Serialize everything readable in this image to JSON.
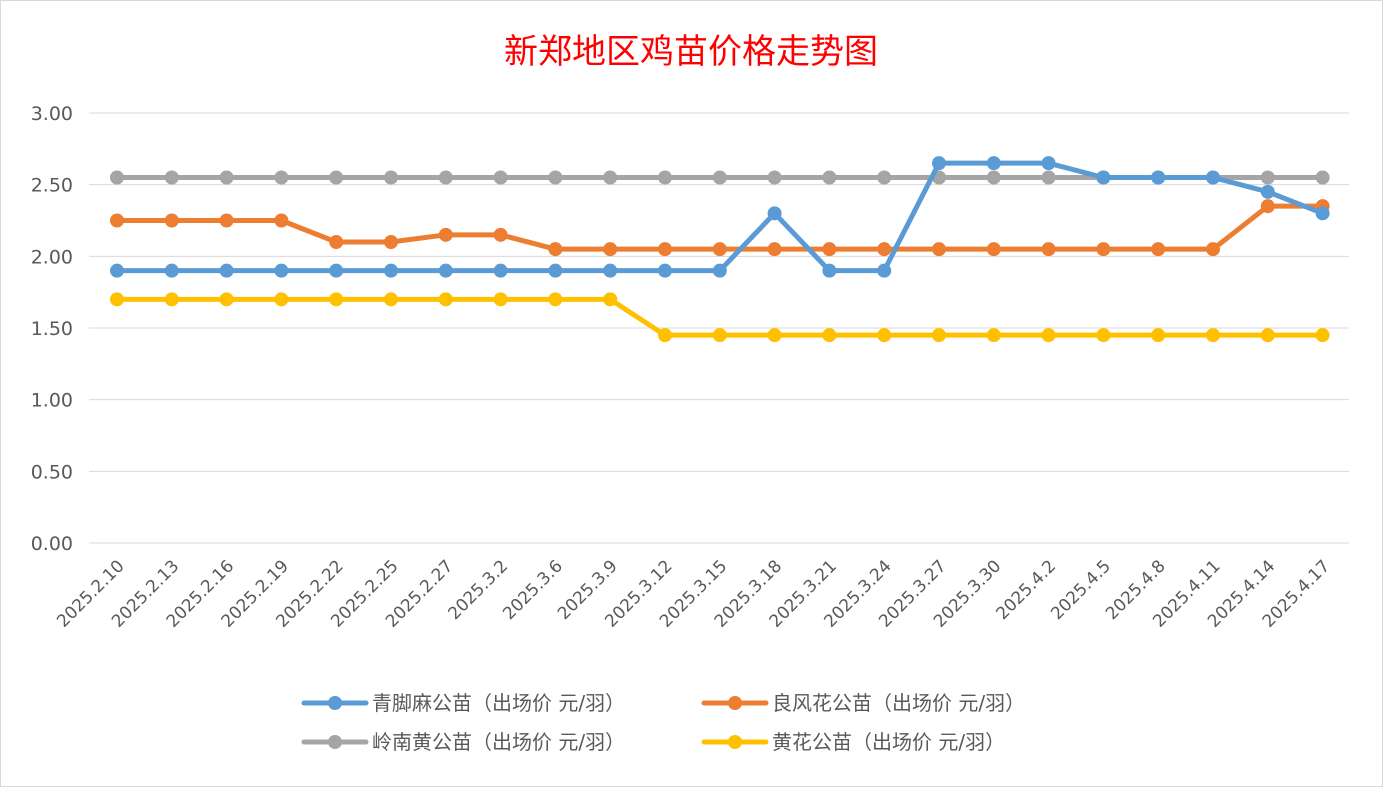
{
  "chart_data": {
    "type": "line",
    "title": "新郑地区鸡苗价格走势图",
    "xlabel": "",
    "ylabel": "",
    "ylim": [
      0,
      3
    ],
    "yticks": [
      "0.00",
      "0.50",
      "1.00",
      "1.50",
      "2.00",
      "2.50",
      "3.00"
    ],
    "categories": [
      "2025.2.10",
      "2025.2.13",
      "2025.2.16",
      "2025.2.19",
      "2025.2.22",
      "2025.2.25",
      "2025.2.27",
      "2025.3.2",
      "2025.3.6",
      "2025.3.9",
      "2025.3.12",
      "2025.3.15",
      "2025.3.18",
      "2025.3.21",
      "2025.3.24",
      "2025.3.27",
      "2025.3.30",
      "2025.4.2",
      "2025.4.5",
      "2025.4.8",
      "2025.4.11",
      "2025.4.14",
      "2025.4.17"
    ],
    "grid": true,
    "legend_position": "bottom",
    "series": [
      {
        "name": "青脚麻公苗（出场价 元/羽）",
        "color": "#5b9bd5",
        "values": [
          1.9,
          1.9,
          1.9,
          1.9,
          1.9,
          1.9,
          1.9,
          1.9,
          1.9,
          1.9,
          1.9,
          1.9,
          2.3,
          1.9,
          1.9,
          2.65,
          2.65,
          2.65,
          2.55,
          2.55,
          2.55,
          2.45,
          2.3
        ]
      },
      {
        "name": "良风花公苗（出场价 元/羽）",
        "color": "#ed7d31",
        "values": [
          2.25,
          2.25,
          2.25,
          2.25,
          2.1,
          2.1,
          2.15,
          2.15,
          2.05,
          2.05,
          2.05,
          2.05,
          2.05,
          2.05,
          2.05,
          2.05,
          2.05,
          2.05,
          2.05,
          2.05,
          2.05,
          2.35,
          2.35
        ]
      },
      {
        "name": "岭南黄公苗（出场价 元/羽）",
        "color": "#a5a5a5",
        "values": [
          2.55,
          2.55,
          2.55,
          2.55,
          2.55,
          2.55,
          2.55,
          2.55,
          2.55,
          2.55,
          2.55,
          2.55,
          2.55,
          2.55,
          2.55,
          2.55,
          2.55,
          2.55,
          2.55,
          2.55,
          2.55,
          2.55,
          2.55
        ]
      },
      {
        "name": "黄花公苗（出场价 元/羽）",
        "color": "#ffc000",
        "values": [
          1.7,
          1.7,
          1.7,
          1.7,
          1.7,
          1.7,
          1.7,
          1.7,
          1.7,
          1.7,
          1.45,
          1.45,
          1.45,
          1.45,
          1.45,
          1.45,
          1.45,
          1.45,
          1.45,
          1.45,
          1.45,
          1.45,
          1.45
        ]
      }
    ]
  },
  "colors": {
    "title": "#ff0000",
    "grid": "#d9d9d9",
    "axis_text": "#595959"
  }
}
